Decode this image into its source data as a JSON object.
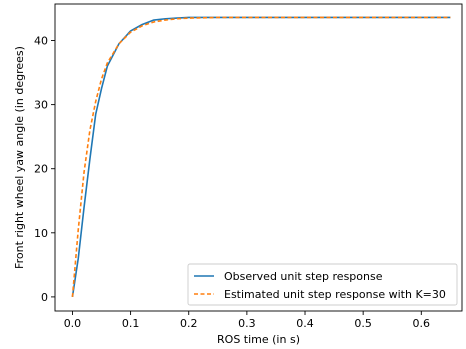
{
  "chart_data": {
    "type": "line",
    "title": "",
    "xlabel": "ROS time (in s)",
    "ylabel": "Front right wheel yaw angle (in degrees)",
    "xlim": [
      -0.03,
      0.67
    ],
    "ylim": [
      -2.2,
      45.7
    ],
    "xticks": [
      0.0,
      0.1,
      0.2,
      0.3,
      0.4,
      0.5,
      0.6
    ],
    "xtick_labels": [
      "0.0",
      "0.1",
      "0.2",
      "0.3",
      "0.4",
      "0.5",
      "0.6"
    ],
    "yticks": [
      0,
      10,
      20,
      30,
      40
    ],
    "ytick_labels": [
      "0",
      "10",
      "20",
      "30",
      "40"
    ],
    "grid": false,
    "legend_position": "lower-right",
    "series": [
      {
        "name": "Observed unit step response",
        "color": "#1f77b4",
        "style": "solid",
        "x": [
          0.0,
          0.01,
          0.02,
          0.03,
          0.04,
          0.05,
          0.06,
          0.08,
          0.1,
          0.12,
          0.14,
          0.16,
          0.18,
          0.2,
          0.25,
          0.3,
          0.4,
          0.5,
          0.6,
          0.65
        ],
        "y": [
          0,
          6,
          14,
          21.5,
          28.5,
          32.5,
          36,
          39.5,
          41.5,
          42.5,
          43.2,
          43.4,
          43.5,
          43.6,
          43.6,
          43.6,
          43.6,
          43.6,
          43.6,
          43.6
        ]
      },
      {
        "name": "Estimated unit step response with K=30",
        "color": "#ff7f0e",
        "style": "dashed",
        "x": [
          0.0,
          0.01,
          0.02,
          0.03,
          0.04,
          0.05,
          0.06,
          0.08,
          0.1,
          0.12,
          0.14,
          0.16,
          0.18,
          0.2,
          0.25,
          0.3,
          0.4,
          0.5,
          0.6,
          0.65
        ],
        "y": [
          0,
          10.5,
          19.5,
          26,
          30.5,
          34,
          36.5,
          39.5,
          41.3,
          42.3,
          42.9,
          43.2,
          43.4,
          43.5,
          43.6,
          43.6,
          43.6,
          43.6,
          43.6,
          43.6
        ]
      }
    ]
  }
}
